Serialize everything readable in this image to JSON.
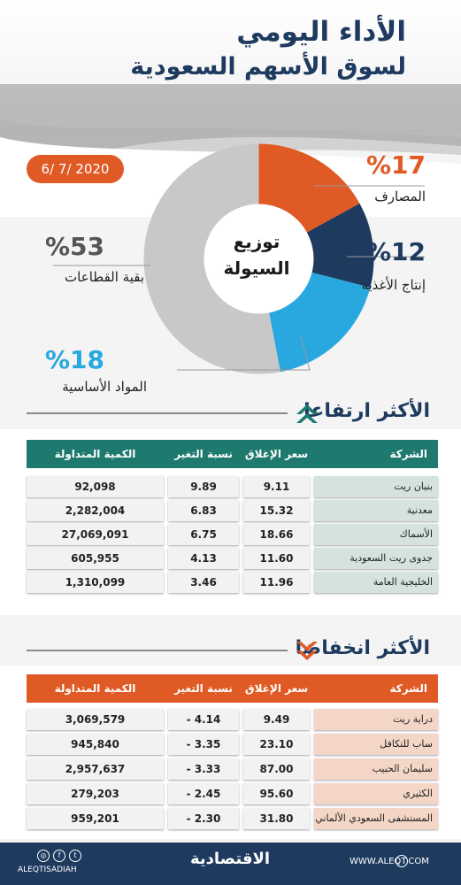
{
  "header": {
    "title_line1": "الأداء اليومي",
    "title_line2": "لسوق الأسهم السعودية",
    "date": "6/ 7/ 2020"
  },
  "distribution": {
    "center_line1": "توزيع",
    "center_line2": "السيولة",
    "segments": [
      {
        "pct": "%17",
        "label": "المصارف",
        "value": 17,
        "color": "#e05a25"
      },
      {
        "pct": "%12",
        "label": "إنتاج الأغذية",
        "value": 12,
        "color": "#1e3a5f"
      },
      {
        "pct": "%18",
        "label": "المواد الأساسية",
        "value": 18,
        "color": "#29a8e0"
      },
      {
        "pct": "%53",
        "label": "بقية القطاعات",
        "value": 53,
        "color": "#c8c8c8"
      }
    ]
  },
  "gainers": {
    "title": "الأكثر ارتفاعا",
    "header_color": "#1e7a6e",
    "name_color": "#d4e2e0",
    "columns": [
      "الشركة",
      "سعر الإغلاق",
      "نسبة التغير %",
      "الكمية المتداولة"
    ],
    "rows": [
      {
        "name": "بنيان ريت",
        "close": "9.11",
        "change": "9.89",
        "volume": "92,098"
      },
      {
        "name": "معدنية",
        "close": "15.32",
        "change": "6.83",
        "volume": "2,282,004"
      },
      {
        "name": "الأسماك",
        "close": "18.66",
        "change": "6.75",
        "volume": "27,069,091"
      },
      {
        "name": "جدوى ريت السعودية",
        "close": "11.60",
        "change": "4.13",
        "volume": "605,955"
      },
      {
        "name": "الخليجية العامة",
        "close": "11.96",
        "change": "3.46",
        "volume": "1,310,099"
      }
    ]
  },
  "losers": {
    "title": "الأكثر انخفاضا",
    "header_color": "#e05a25",
    "name_color": "#f3d6c6",
    "columns": [
      "الشركة",
      "سعر الإغلاق",
      "نسبة التغير %",
      "الكمية المتداولة"
    ],
    "rows": [
      {
        "name": "دراية ريت",
        "close": "9.49",
        "change": "- 4.14",
        "volume": "3,069,579"
      },
      {
        "name": "ساب للتكافل",
        "close": "23.10",
        "change": "- 3.35",
        "volume": "945,840"
      },
      {
        "name": "سليمان الحبيب",
        "close": "87.00",
        "change": "- 3.33",
        "volume": "2,957,637"
      },
      {
        "name": "الكثيري",
        "close": "95.60",
        "change": "- 2.45",
        "volume": "279,203"
      },
      {
        "name": "المستشفى السعودي الألماني",
        "close": "31.80",
        "change": "- 2.30",
        "volume": "959,201"
      }
    ]
  },
  "footer": {
    "brand": "الاقتصادية",
    "url": "WWW.ALEQT.COM",
    "handle": "ALEQTISADIAH",
    "social_icons": [
      "instagram-icon",
      "facebook-icon",
      "twitter-icon"
    ],
    "globe_icon": "globe-icon"
  }
}
